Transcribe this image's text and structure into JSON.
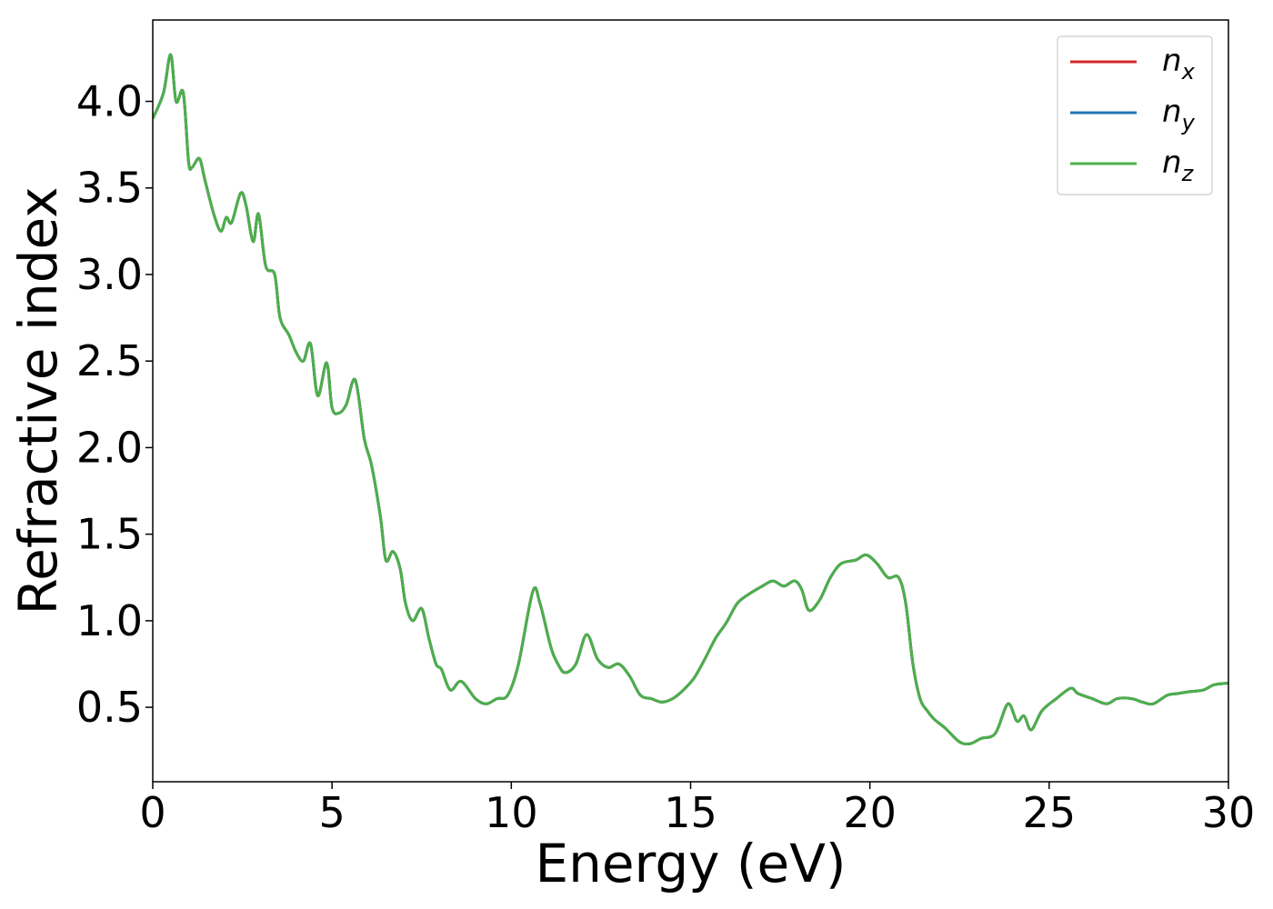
{
  "chart_data": {
    "type": "line",
    "xlabel": "Energy (eV)",
    "ylabel": "Refractive index",
    "xlim": [
      0,
      30
    ],
    "ylim": [
      0.07,
      4.47
    ],
    "xticks": [
      "0",
      "5",
      "10",
      "15",
      "20",
      "25",
      "30"
    ],
    "xtick_values": [
      0,
      5,
      10,
      15,
      20,
      25,
      30
    ],
    "yticks": [
      "0.5",
      "1.0",
      "1.5",
      "2.0",
      "2.5",
      "3.0",
      "3.5",
      "4.0"
    ],
    "ytick_values": [
      0.5,
      1.0,
      1.5,
      2.0,
      2.5,
      3.0,
      3.5,
      4.0
    ],
    "grid": false,
    "legend_position": "top-right",
    "series": [
      {
        "name": "n",
        "subscript": "x",
        "color": "#d62728"
      },
      {
        "name": "n",
        "subscript": "y",
        "color": "#1f77b4"
      },
      {
        "name": "n",
        "subscript": "z",
        "color": "#4daf4a"
      }
    ],
    "x": [
      0.0,
      0.3,
      0.5,
      0.65,
      0.85,
      1.0,
      1.1,
      1.3,
      1.45,
      1.7,
      1.9,
      2.05,
      2.2,
      2.45,
      2.6,
      2.8,
      2.95,
      3.15,
      3.4,
      3.55,
      3.8,
      4.0,
      4.2,
      4.4,
      4.6,
      4.85,
      5.0,
      5.2,
      5.4,
      5.65,
      5.9,
      6.1,
      6.35,
      6.5,
      6.7,
      6.9,
      7.05,
      7.25,
      7.5,
      7.7,
      7.9,
      8.05,
      8.3,
      8.6,
      9.0,
      9.3,
      9.6,
      9.9,
      10.2,
      10.6,
      10.8,
      11.1,
      11.3,
      11.5,
      11.8,
      12.1,
      12.4,
      12.7,
      13.0,
      13.3,
      13.6,
      13.9,
      14.2,
      14.5,
      14.8,
      15.1,
      15.4,
      15.7,
      16.0,
      16.3,
      16.6,
      17.0,
      17.3,
      17.6,
      17.9,
      18.1,
      18.3,
      18.6,
      18.9,
      19.2,
      19.6,
      19.9,
      20.2,
      20.5,
      20.8,
      21.0,
      21.2,
      21.4,
      21.6,
      21.8,
      22.1,
      22.5,
      22.8,
      23.1,
      23.5,
      23.85,
      24.1,
      24.3,
      24.5,
      24.8,
      25.2,
      25.6,
      25.8,
      26.2,
      26.6,
      26.9,
      27.3,
      27.6,
      27.9,
      28.3,
      28.6,
      28.9,
      29.3,
      29.6,
      30.0
    ],
    "values": [
      3.9,
      4.05,
      4.27,
      4.0,
      4.05,
      3.65,
      3.62,
      3.67,
      3.55,
      3.35,
      3.25,
      3.33,
      3.3,
      3.47,
      3.4,
      3.19,
      3.35,
      3.05,
      3.0,
      2.75,
      2.65,
      2.55,
      2.5,
      2.6,
      2.3,
      2.49,
      2.23,
      2.2,
      2.25,
      2.39,
      2.05,
      1.9,
      1.6,
      1.35,
      1.4,
      1.3,
      1.1,
      1.0,
      1.07,
      0.9,
      0.75,
      0.72,
      0.6,
      0.65,
      0.55,
      0.52,
      0.55,
      0.57,
      0.75,
      1.17,
      1.1,
      0.85,
      0.75,
      0.7,
      0.75,
      0.92,
      0.78,
      0.73,
      0.75,
      0.68,
      0.57,
      0.55,
      0.53,
      0.55,
      0.6,
      0.67,
      0.78,
      0.9,
      0.99,
      1.1,
      1.15,
      1.2,
      1.23,
      1.2,
      1.23,
      1.18,
      1.06,
      1.12,
      1.25,
      1.33,
      1.35,
      1.38,
      1.33,
      1.25,
      1.25,
      1.1,
      0.75,
      0.55,
      0.48,
      0.43,
      0.38,
      0.3,
      0.29,
      0.32,
      0.35,
      0.52,
      0.42,
      0.45,
      0.37,
      0.48,
      0.55,
      0.61,
      0.58,
      0.55,
      0.52,
      0.55,
      0.55,
      0.53,
      0.52,
      0.57,
      0.58,
      0.59,
      0.6,
      0.63,
      0.64
    ]
  }
}
